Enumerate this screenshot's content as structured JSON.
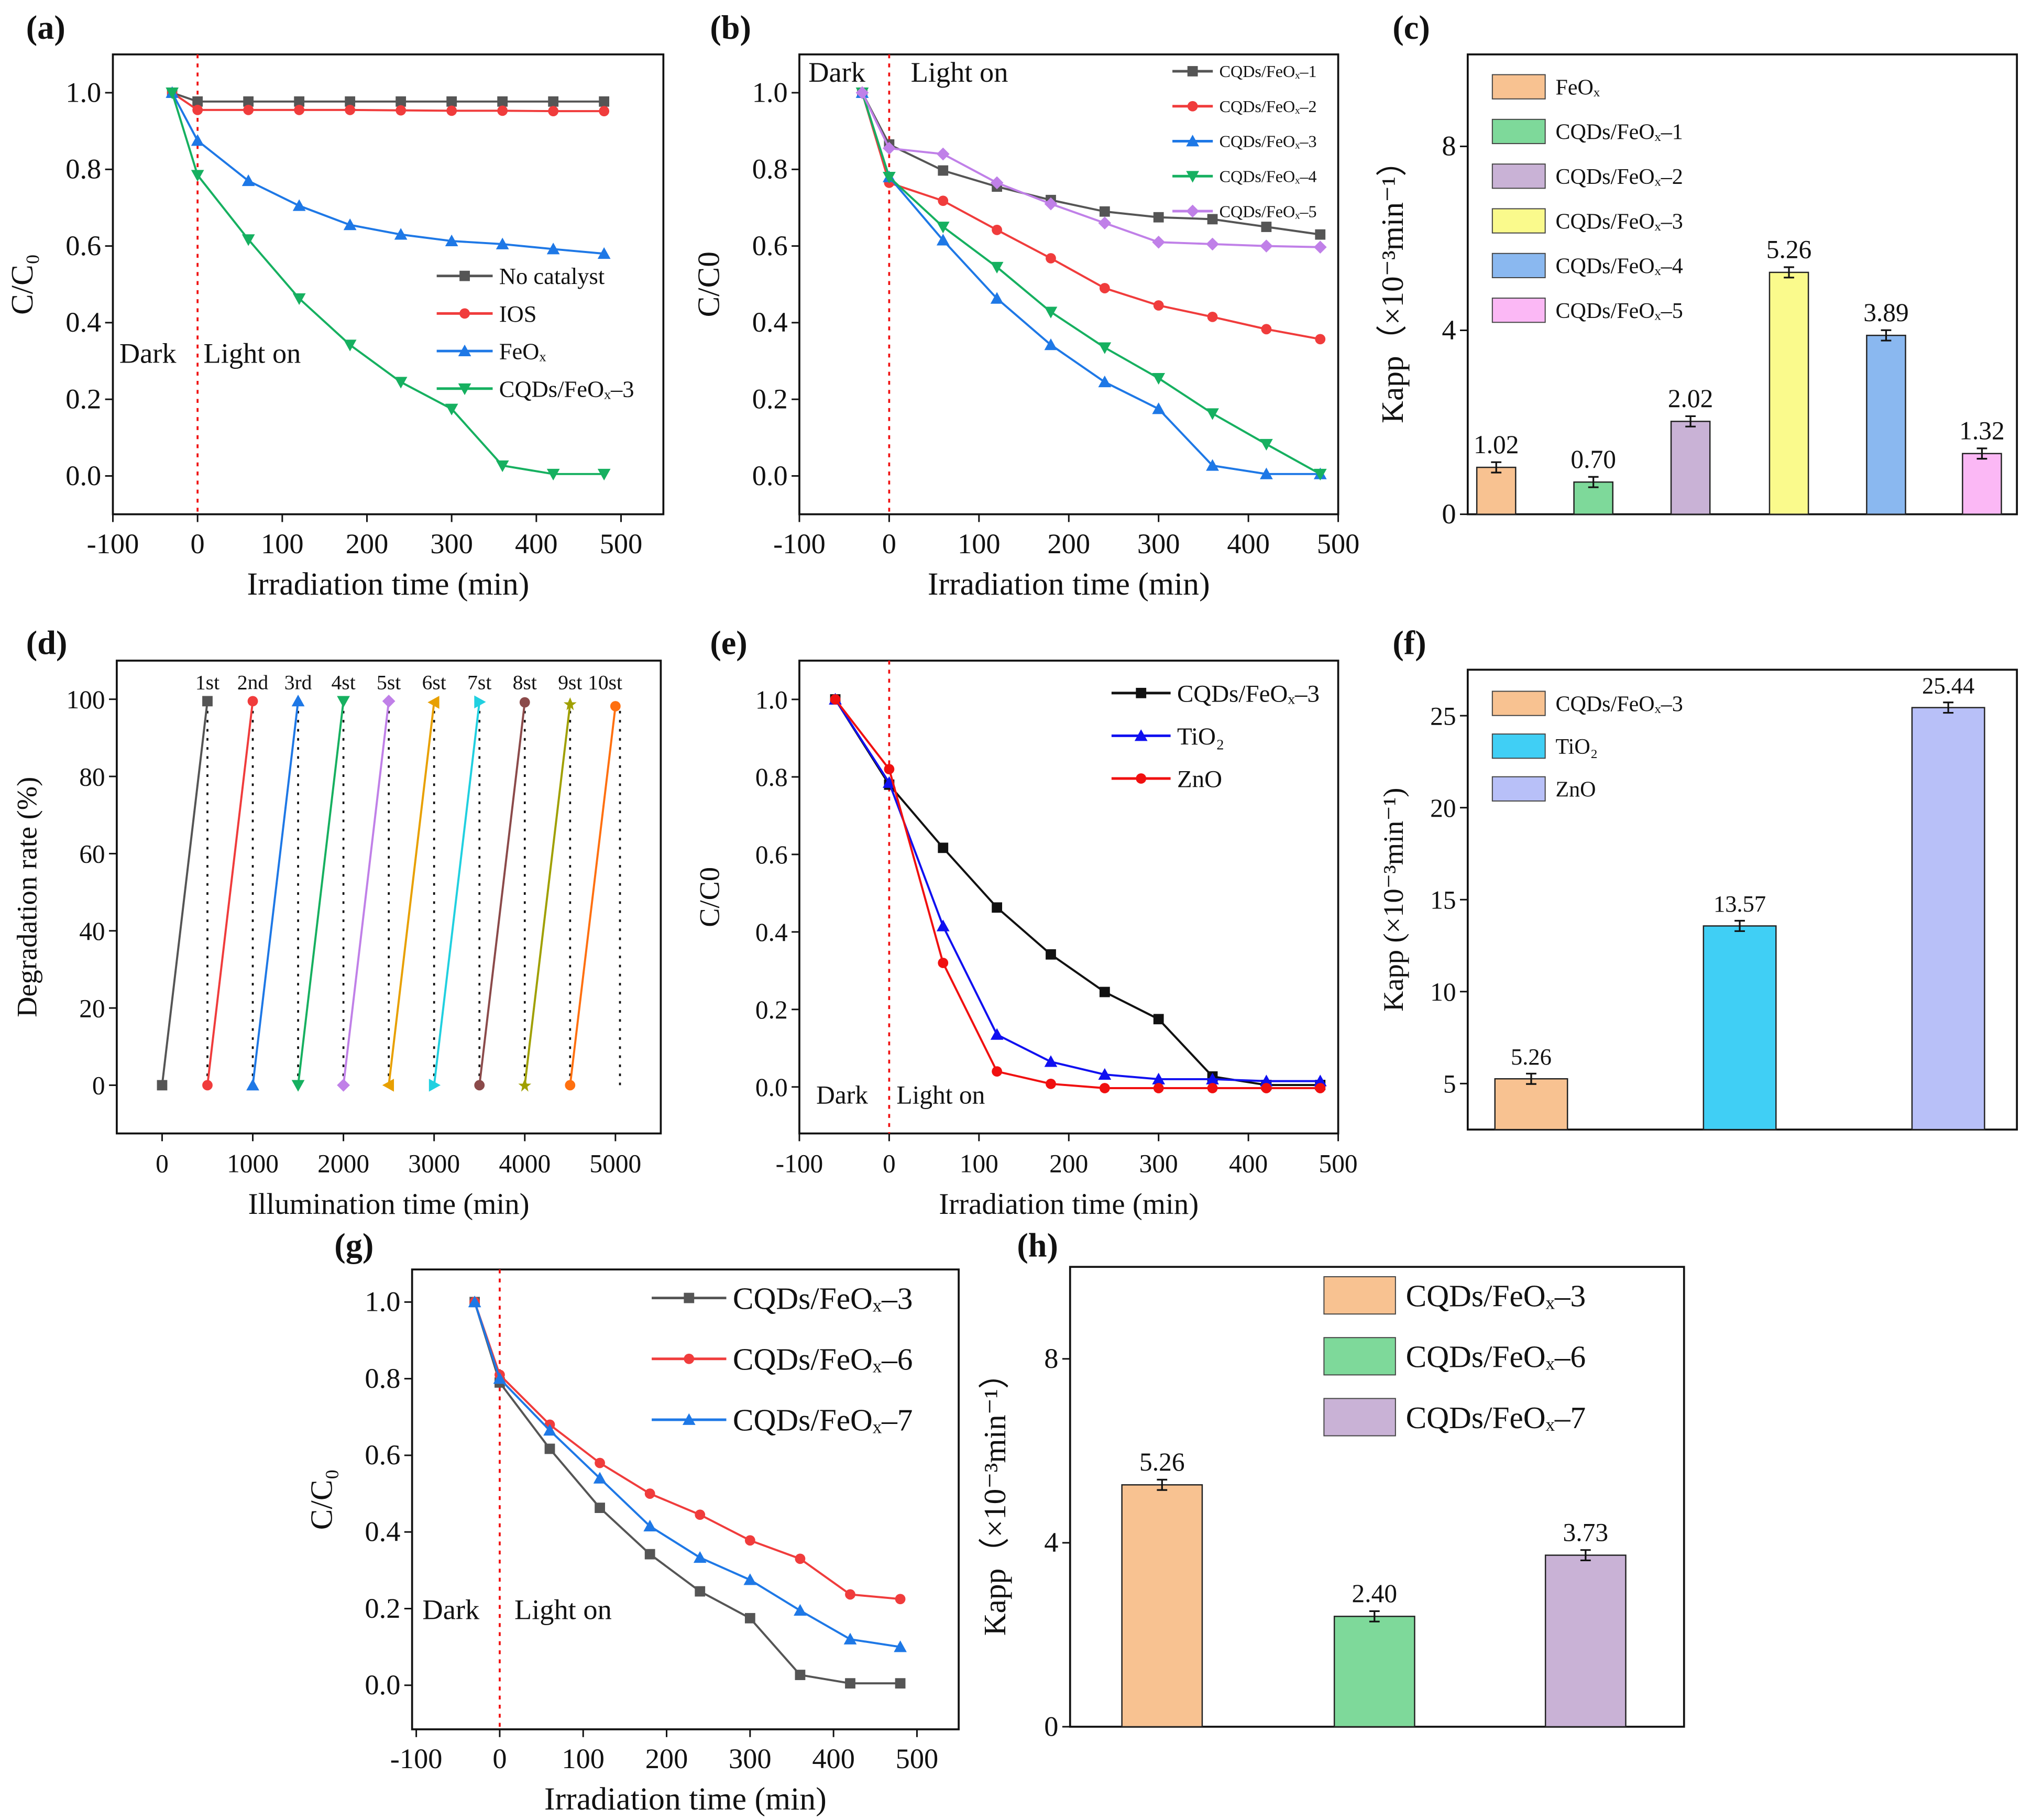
{
  "chart_data": [
    {
      "panel_label": "(a)",
      "type": "line",
      "xlabel": "Irradiation time (min)",
      "ylabel": "C/C₀",
      "xlim": [
        -100,
        550
      ],
      "ylim": [
        -0.1,
        1.1
      ],
      "xticks": [
        "-100",
        "0",
        "100",
        "200",
        "300",
        "400",
        "500"
      ],
      "yticks": [
        "0.0",
        "0.2",
        "0.4",
        "0.6",
        "0.8",
        "1.0"
      ],
      "annotations": [
        "Dark",
        "Light on"
      ],
      "marker_line_x": 0,
      "legend": "center-right",
      "x": [
        -30,
        0,
        60,
        120,
        180,
        240,
        300,
        360,
        420,
        480
      ],
      "series": [
        {
          "name": "No catalyst",
          "color": "#555555",
          "marker": "square",
          "values": [
            1,
            0.977,
            0.977,
            0.977,
            0.977,
            0.977,
            0.977,
            0.977,
            0.977,
            0.977
          ]
        },
        {
          "name": "IOS",
          "color": "#f03c3c",
          "marker": "circle",
          "values": [
            1,
            0.955,
            0.955,
            0.955,
            0.955,
            0.954,
            0.953,
            0.953,
            0.952,
            0.952
          ]
        },
        {
          "name": "FeOₓ",
          "color": "#1e78e6",
          "marker": "triangle-up",
          "values": [
            1,
            0.875,
            0.77,
            0.705,
            0.655,
            0.63,
            0.613,
            0.605,
            0.592,
            0.58
          ]
        },
        {
          "name": "CQDs/FeOₓ–3",
          "color": "#16b060",
          "marker": "triangle-down",
          "values": [
            1,
            0.785,
            0.617,
            0.463,
            0.342,
            0.245,
            0.175,
            0.027,
            0.005,
            0.005
          ]
        }
      ]
    },
    {
      "panel_label": "(b)",
      "type": "line",
      "xlabel": "Irradiation time (min)",
      "ylabel": "C/C0",
      "xlim": [
        -100,
        500
      ],
      "ylim": [
        -0.1,
        1.1
      ],
      "xticks": [
        "-100",
        "0",
        "100",
        "200",
        "300",
        "400",
        "500"
      ],
      "yticks": [
        "0.0",
        "0.2",
        "0.4",
        "0.6",
        "0.8",
        "1.0"
      ],
      "annotations": [
        "Dark",
        "Light on"
      ],
      "marker_line_x": 0,
      "legend": "top-right",
      "x": [
        -30,
        0,
        60,
        120,
        180,
        240,
        300,
        360,
        420,
        480
      ],
      "series": [
        {
          "name": "CQDs/FeOₓ–1",
          "color": "#555555",
          "marker": "square",
          "values": [
            1,
            0.865,
            0.797,
            0.755,
            0.72,
            0.69,
            0.675,
            0.67,
            0.65,
            0.63
          ]
        },
        {
          "name": "CQDs/FeOₓ–2",
          "color": "#f03c3c",
          "marker": "circle",
          "values": [
            1,
            0.765,
            0.718,
            0.642,
            0.568,
            0.49,
            0.445,
            0.415,
            0.383,
            0.357
          ]
        },
        {
          "name": "CQDs/FeOₓ–3",
          "color": "#1e78e6",
          "marker": "triangle-up",
          "values": [
            1,
            0.78,
            0.615,
            0.463,
            0.342,
            0.245,
            0.175,
            0.027,
            0.005,
            0.005
          ]
        },
        {
          "name": "CQDs/FeOₓ–4",
          "color": "#16b060",
          "marker": "triangle-down",
          "values": [
            1,
            0.78,
            0.65,
            0.545,
            0.428,
            0.335,
            0.255,
            0.163,
            0.083,
            0.005
          ]
        },
        {
          "name": "CQDs/FeOₓ–5",
          "color": "#c080e8",
          "marker": "diamond",
          "values": [
            1,
            0.855,
            0.84,
            0.765,
            0.71,
            0.66,
            0.61,
            0.605,
            0.6,
            0.597
          ]
        }
      ]
    },
    {
      "panel_label": "(c)",
      "type": "bar",
      "xlabel": "",
      "ylabel": "Kapp（×10⁻³min⁻¹）",
      "ylim": [
        0,
        10
      ],
      "yticks": [
        "0",
        "4",
        "8"
      ],
      "legend": "top-left",
      "categories": [
        "FeOₓ",
        "CQDs/FeOₓ–1",
        "CQDs/FeOₓ–2",
        "CQDs/FeOₓ–3",
        "CQDs/FeOₓ–4",
        "CQDs/FeOₓ–5"
      ],
      "values": [
        1.02,
        0.7,
        2.02,
        5.26,
        3.89,
        1.32
      ],
      "value_labels": [
        "1.02",
        "0.70",
        "2.02",
        "5.26",
        "3.89",
        "1.32"
      ],
      "colors": [
        "#f8c291",
        "#7ed99a",
        "#c9b2d6",
        "#fafa8c",
        "#8ab8f0",
        "#fbb8f5"
      ]
    },
    {
      "panel_label": "(d)",
      "type": "line",
      "xlabel": "Illumination time (min)",
      "ylabel": "Degradation rate (%)",
      "xlim": [
        -500,
        5500
      ],
      "ylim": [
        -12.5,
        110
      ],
      "xticks": [
        "0",
        "1000",
        "2000",
        "3000",
        "4000",
        "5000"
      ],
      "yticks": [
        "0",
        "20",
        "40",
        "60",
        "80",
        "100"
      ],
      "cycle_labels": [
        "1st",
        "2nd",
        "3rd",
        "4st",
        "5st",
        "6st",
        "7st",
        "8st",
        "9st",
        "10st"
      ],
      "series": [
        {
          "name": "1st",
          "color": "#555555",
          "marker": "square",
          "x": [
            0,
            500
          ],
          "values": [
            0,
            99.5
          ]
        },
        {
          "name": "2nd",
          "color": "#f03c3c",
          "marker": "circle",
          "x": [
            500,
            1000
          ],
          "values": [
            0,
            99.5
          ]
        },
        {
          "name": "3rd",
          "color": "#1e78e6",
          "marker": "triangle-up",
          "x": [
            1000,
            1500
          ],
          "values": [
            0,
            99.5
          ]
        },
        {
          "name": "4st",
          "color": "#16b060",
          "marker": "triangle-down",
          "x": [
            1500,
            2000
          ],
          "values": [
            0,
            99.5
          ]
        },
        {
          "name": "5st",
          "color": "#c080e8",
          "marker": "diamond",
          "x": [
            2000,
            2500
          ],
          "values": [
            0,
            99.5
          ]
        },
        {
          "name": "6st",
          "color": "#e8a000",
          "marker": "triangle-left",
          "x": [
            2500,
            3000
          ],
          "values": [
            0,
            99.2
          ]
        },
        {
          "name": "7st",
          "color": "#20d0e0",
          "marker": "triangle-right",
          "x": [
            3000,
            3500
          ],
          "values": [
            0,
            99.3
          ]
        },
        {
          "name": "8st",
          "color": "#8b4a4a",
          "marker": "circle",
          "x": [
            3500,
            4000
          ],
          "values": [
            0,
            99.2
          ]
        },
        {
          "name": "9st",
          "color": "#a0a000",
          "marker": "star",
          "x": [
            4000,
            4500
          ],
          "values": [
            0,
            98.8
          ]
        },
        {
          "name": "10st",
          "color": "#ff7010",
          "marker": "circle",
          "x": [
            4500,
            5000
          ],
          "values": [
            0,
            98.2
          ]
        }
      ]
    },
    {
      "panel_label": "(e)",
      "type": "line",
      "xlabel": "Irradiation time (min)",
      "ylabel": "C/C0",
      "xlim": [
        -100,
        500
      ],
      "ylim": [
        -0.12,
        1.1
      ],
      "xticks": [
        "-100",
        "0",
        "100",
        "200",
        "300",
        "400",
        "500"
      ],
      "yticks": [
        "0.0",
        "0.2",
        "0.4",
        "0.6",
        "0.8",
        "1.0"
      ],
      "annotations": [
        "Dark",
        "Light on"
      ],
      "marker_line_x": 0,
      "legend": "top-right",
      "x": [
        -60,
        0,
        60,
        120,
        180,
        240,
        300,
        360,
        420,
        480
      ],
      "series": [
        {
          "name": "CQDs/FeOₓ–3",
          "color": "#111111",
          "marker": "square",
          "values": [
            1,
            0.78,
            0.617,
            0.463,
            0.342,
            0.245,
            0.175,
            0.027,
            0.005,
            0.005
          ]
        },
        {
          "name": "TiO₂",
          "color": "#1010f0",
          "marker": "triangle-up",
          "values": [
            1,
            0.785,
            0.415,
            0.135,
            0.065,
            0.032,
            0.02,
            0.02,
            0.015,
            0.015
          ]
        },
        {
          "name": "ZnO",
          "color": "#f01010",
          "marker": "circle",
          "values": [
            1,
            0.82,
            0.32,
            0.04,
            0.008,
            -0.003,
            -0.003,
            -0.003,
            -0.003,
            -0.003
          ]
        }
      ]
    },
    {
      "panel_label": "(f)",
      "type": "bar",
      "xlabel": "",
      "ylabel": "Kapp (×10⁻³min⁻¹)",
      "ylim": [
        2.5,
        27.5
      ],
      "yticks": [
        "5",
        "10",
        "15",
        "20",
        "25"
      ],
      "legend": "top-left",
      "categories": [
        "CQDs/FeOₓ–3",
        "TiO₂",
        "ZnO"
      ],
      "values": [
        5.26,
        13.57,
        25.44
      ],
      "value_labels": [
        "5.26",
        "13.57",
        "25.44"
      ],
      "colors": [
        "#f8c291",
        "#40cff5",
        "#b8c0f8"
      ]
    },
    {
      "panel_label": "(g)",
      "type": "line",
      "xlabel": "Irradiation time (min)",
      "ylabel": "C/C₀",
      "xlim": [
        -105,
        550
      ],
      "ylim": [
        -0.115,
        1.085
      ],
      "xticks": [
        "-100",
        "0",
        "100",
        "200",
        "300",
        "400",
        "500"
      ],
      "yticks": [
        "0.0",
        "0.2",
        "0.4",
        "0.6",
        "0.8",
        "1.0"
      ],
      "annotations": [
        "Dark",
        "Light on"
      ],
      "marker_line_x": 0,
      "legend": "top-right",
      "x": [
        -30,
        0,
        60,
        120,
        180,
        240,
        300,
        360,
        420,
        480
      ],
      "series": [
        {
          "name": "CQDs/FeOₓ–3",
          "color": "#555555",
          "marker": "square",
          "values": [
            1,
            0.79,
            0.617,
            0.463,
            0.342,
            0.245,
            0.175,
            0.027,
            0.005,
            0.005
          ]
        },
        {
          "name": "CQDs/FeOₓ–6",
          "color": "#f03c3c",
          "marker": "circle",
          "values": [
            1,
            0.81,
            0.68,
            0.58,
            0.5,
            0.445,
            0.378,
            0.33,
            0.237,
            0.225
          ]
        },
        {
          "name": "CQDs/FeOₓ–7",
          "color": "#1e78e6",
          "marker": "triangle-up",
          "values": [
            1,
            0.8,
            0.665,
            0.54,
            0.415,
            0.333,
            0.275,
            0.195,
            0.12,
            0.1
          ]
        }
      ]
    },
    {
      "panel_label": "(h)",
      "type": "bar",
      "xlabel": "",
      "ylabel": "Kapp（×10⁻³min⁻¹）",
      "ylim": [
        0,
        10
      ],
      "yticks": [
        "0",
        "4",
        "8"
      ],
      "legend": "top-right",
      "categories": [
        "CQDs/FeOₓ–3",
        "CQDs/FeOₓ–6",
        "CQDs/FeOₓ–7"
      ],
      "values": [
        5.26,
        2.4,
        3.73
      ],
      "value_labels": [
        "5.26",
        "2.40",
        "3.73"
      ],
      "colors": [
        "#f8c291",
        "#7ed99a",
        "#c9b2d6"
      ]
    }
  ]
}
